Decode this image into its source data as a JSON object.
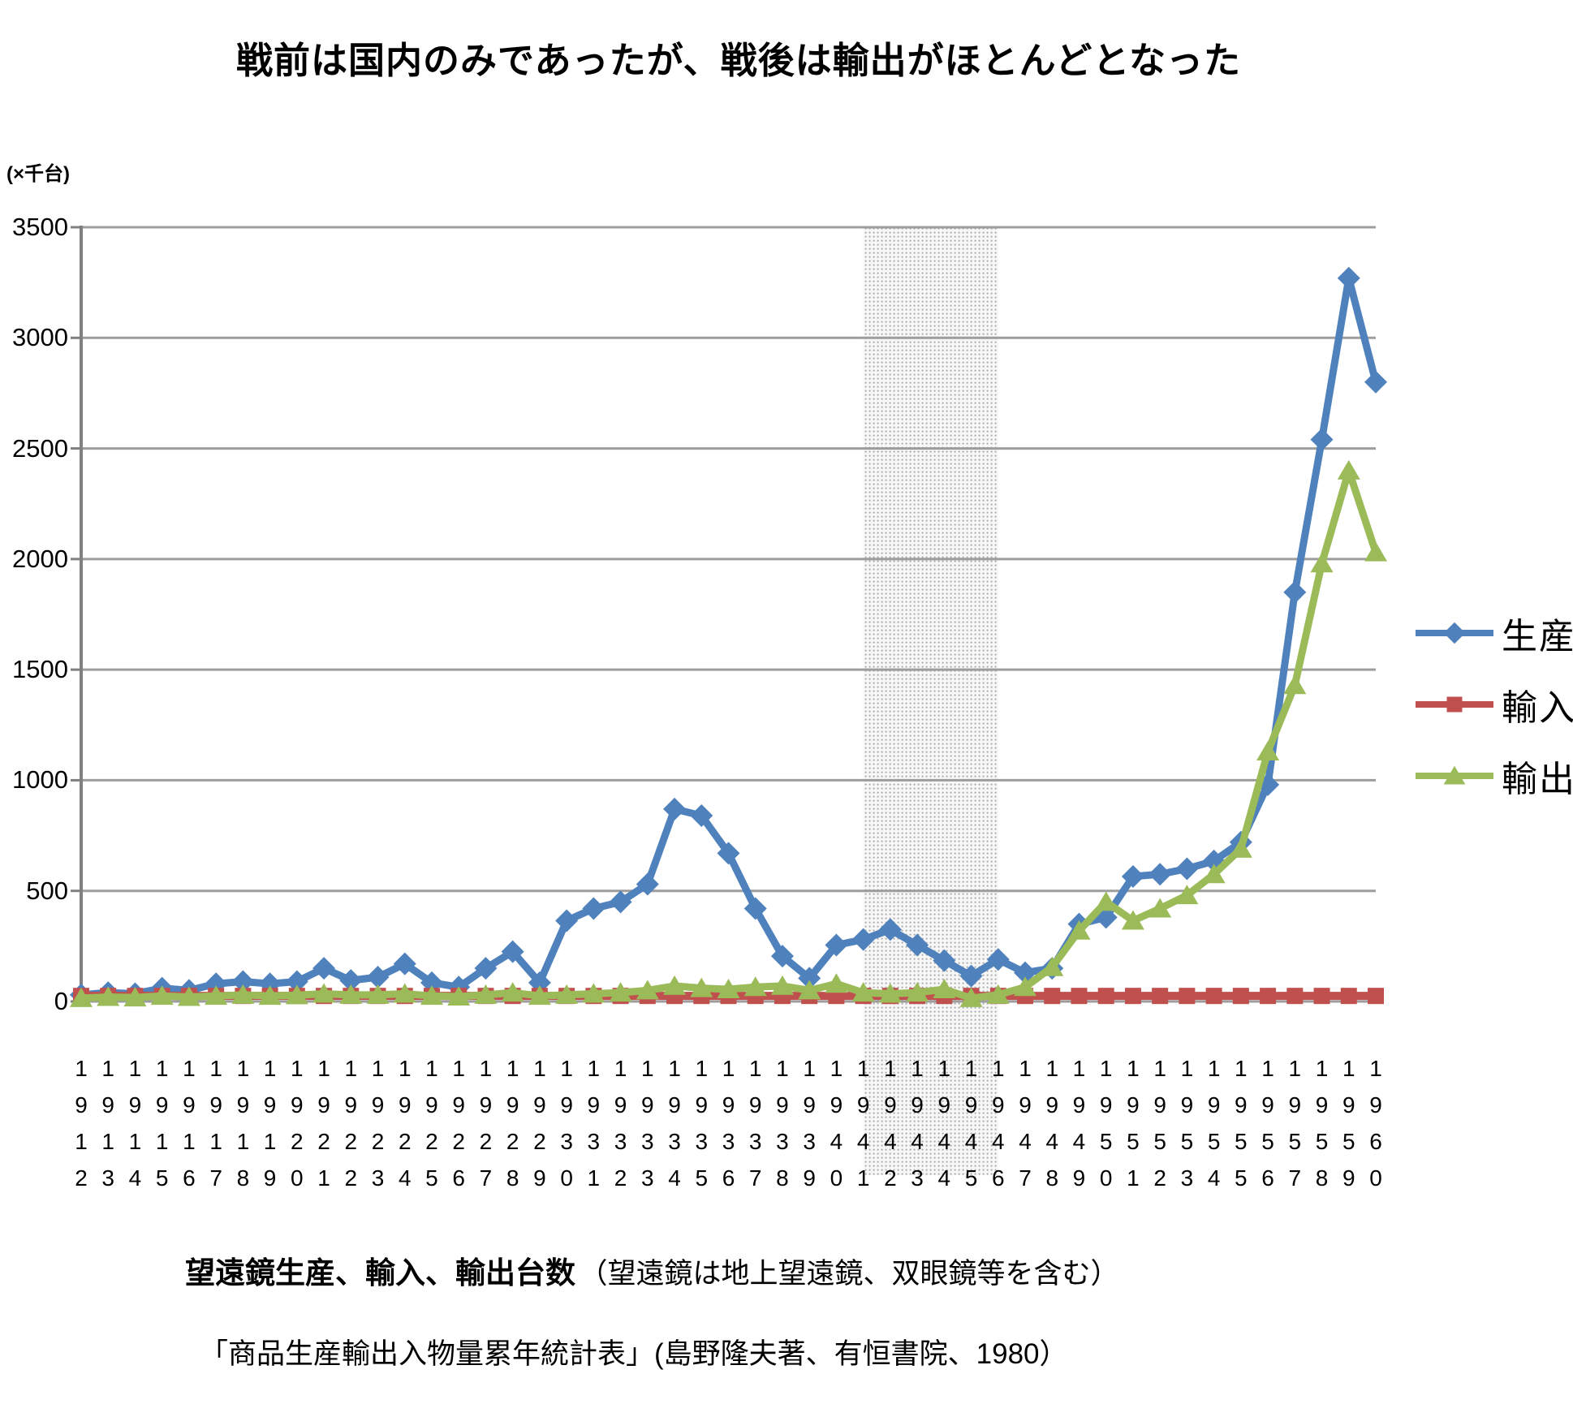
{
  "title": "戦前は国内のみであったが、戦後は輸出がほとんどとなった",
  "caption": {
    "bold": "望遠鏡生産、輸入、輸出台数",
    "paren": "（望遠鏡は地上望遠鏡、双眼鏡等を含む）"
  },
  "source": "「商品生産輸出入物量累年統計表」(島野隆夫著、有恒書院、1980）",
  "colors": {
    "production": "#4F81BD",
    "import": "#C0504D",
    "export": "#9BBB59",
    "grid": "#9D9D9D",
    "axis": "#808080",
    "band_dot": "#A8A8A8"
  },
  "chart_data": {
    "type": "line",
    "title": "戦前は国内のみであったが、戦後は輸出がほとんどとなった",
    "y_unit_label": "(×千台)",
    "xlabel": "",
    "ylabel": "(×千台)",
    "ylim": [
      0,
      3500
    ],
    "y_ticks": [
      0,
      500,
      1000,
      1500,
      2000,
      2500,
      3000,
      3500
    ],
    "grid": "horizontal",
    "legend_position": "right",
    "war_band": {
      "from_year": 1941,
      "to_year": 1946
    },
    "x": [
      1912,
      1913,
      1914,
      1915,
      1916,
      1917,
      1918,
      1919,
      1920,
      1921,
      1922,
      1923,
      1924,
      1925,
      1926,
      1927,
      1928,
      1929,
      1930,
      1931,
      1932,
      1933,
      1934,
      1935,
      1936,
      1937,
      1938,
      1939,
      1940,
      1941,
      1942,
      1943,
      1944,
      1945,
      1946,
      1947,
      1948,
      1949,
      1950,
      1951,
      1952,
      1953,
      1954,
      1955,
      1956,
      1957,
      1958,
      1959,
      1960
    ],
    "series": [
      {
        "name": "生産",
        "marker": "diamond",
        "color_key": "production",
        "values": [
          30,
          40,
          35,
          60,
          50,
          80,
          90,
          80,
          90,
          150,
          95,
          110,
          170,
          85,
          65,
          150,
          225,
          85,
          365,
          420,
          450,
          530,
          870,
          840,
          670,
          420,
          205,
          105,
          255,
          280,
          325,
          255,
          185,
          115,
          190,
          130,
          150,
          350,
          380,
          565,
          575,
          600,
          635,
          720,
          980,
          1850,
          2540,
          3270,
          2800
        ]
      },
      {
        "name": "輸入",
        "marker": "square",
        "color_key": "import",
        "values": [
          25,
          25,
          25,
          25,
          25,
          25,
          25,
          25,
          25,
          25,
          25,
          25,
          25,
          25,
          25,
          25,
          25,
          25,
          25,
          25,
          25,
          25,
          25,
          25,
          25,
          25,
          25,
          25,
          25,
          25,
          25,
          25,
          25,
          25,
          25,
          25,
          25,
          25,
          25,
          25,
          25,
          25,
          25,
          25,
          25,
          25,
          25,
          25,
          25
        ]
      },
      {
        "name": "輸出",
        "marker": "triangle",
        "color_key": "export",
        "values": [
          15,
          20,
          18,
          25,
          20,
          25,
          30,
          25,
          28,
          35,
          30,
          30,
          35,
          25,
          22,
          30,
          40,
          25,
          30,
          35,
          40,
          50,
          70,
          60,
          55,
          65,
          70,
          50,
          80,
          40,
          35,
          40,
          55,
          15,
          30,
          65,
          155,
          320,
          450,
          365,
          420,
          480,
          575,
          690,
          1130,
          1430,
          1980,
          2400,
          2030
        ]
      }
    ]
  }
}
